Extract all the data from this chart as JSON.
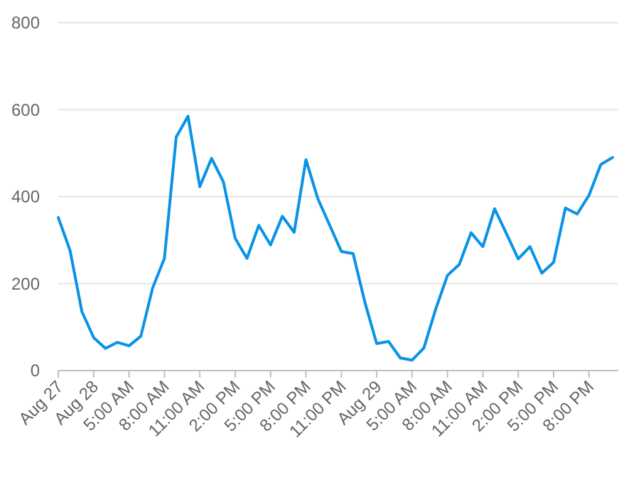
{
  "chart_data": {
    "type": "line",
    "categories": [
      "Aug 27",
      null,
      null,
      "Aug 28",
      null,
      null,
      "5:00 AM",
      null,
      null,
      "8:00 AM",
      null,
      null,
      "11:00 AM",
      null,
      null,
      "2:00 PM",
      null,
      null,
      "5:00 PM",
      null,
      null,
      "8:00 PM",
      null,
      null,
      "11:00 PM",
      null,
      null,
      "Aug 29",
      null,
      null,
      "5:00 AM",
      null,
      null,
      "8:00 AM",
      null,
      null,
      "11:00 AM",
      null,
      null,
      "2:00 PM",
      null,
      null,
      "5:00 PM",
      null,
      null,
      "8:00 PM",
      null,
      null
    ],
    "series": [
      {
        "color": "#0a93e6",
        "values": [
          352,
          276,
          136,
          76,
          51,
          65,
          57,
          79,
          190,
          258,
          537,
          585,
          423,
          488,
          434,
          304,
          258,
          334,
          289,
          355,
          318,
          485,
          396,
          335,
          274,
          269,
          157,
          62,
          67,
          29,
          24,
          52,
          141,
          219,
          244,
          317,
          285,
          372,
          315,
          257,
          285,
          224,
          249,
          374,
          360,
          403,
          474,
          490
        ]
      }
    ],
    "ylim": [
      0,
      800
    ],
    "yticks": [
      0,
      200,
      400,
      600,
      800
    ],
    "grid": "y",
    "marker": "none",
    "line_style": "solid"
  }
}
